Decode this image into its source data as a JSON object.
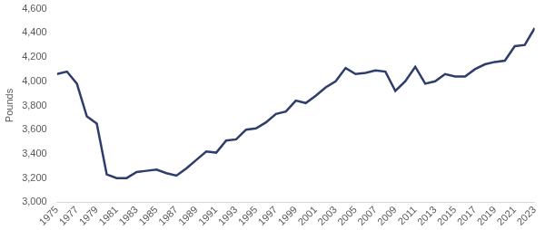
{
  "chart_data": {
    "type": "line",
    "y_label": "Pounds",
    "categories": [
      "1975",
      null,
      "1977",
      null,
      "1979",
      null,
      "1981",
      null,
      "1983",
      null,
      "1985",
      null,
      "1987",
      null,
      "1989",
      null,
      "1991",
      null,
      "1993",
      null,
      "1995",
      null,
      "1997",
      null,
      "1999",
      null,
      "2001",
      null,
      "2003",
      null,
      "2005",
      null,
      "2007",
      null,
      "2009",
      null,
      "2011",
      null,
      "2013",
      null,
      "2015",
      null,
      "2017",
      null,
      "2019",
      null,
      "2021",
      null,
      "2023"
    ],
    "values": [
      4060,
      4080,
      3980,
      3710,
      3650,
      3230,
      3200,
      3200,
      3250,
      3260,
      3270,
      3240,
      3220,
      3280,
      3350,
      3420,
      3410,
      3510,
      3520,
      3600,
      3610,
      3660,
      3730,
      3750,
      3840,
      3820,
      3880,
      3950,
      4000,
      4110,
      4060,
      4070,
      4090,
      4080,
      3920,
      4000,
      4120,
      3980,
      4000,
      4060,
      4040,
      4040,
      4100,
      4140,
      4160,
      4170,
      4290,
      4300,
      4440
    ],
    "color": "#2e3d6b",
    "ylim": [
      3000,
      4600
    ],
    "yticks": [
      {
        "value": 3000,
        "label": "3,000"
      },
      {
        "value": 3200,
        "label": "3,200"
      },
      {
        "value": 3400,
        "label": "3,400"
      },
      {
        "value": 3600,
        "label": "3,600"
      },
      {
        "value": 3800,
        "label": "3,800"
      },
      {
        "value": 4000,
        "label": "4,000"
      },
      {
        "value": 4200,
        "label": "4,200"
      },
      {
        "value": 4400,
        "label": "4,400"
      },
      {
        "value": 4600,
        "label": "4,600"
      }
    ],
    "grid": false
  }
}
